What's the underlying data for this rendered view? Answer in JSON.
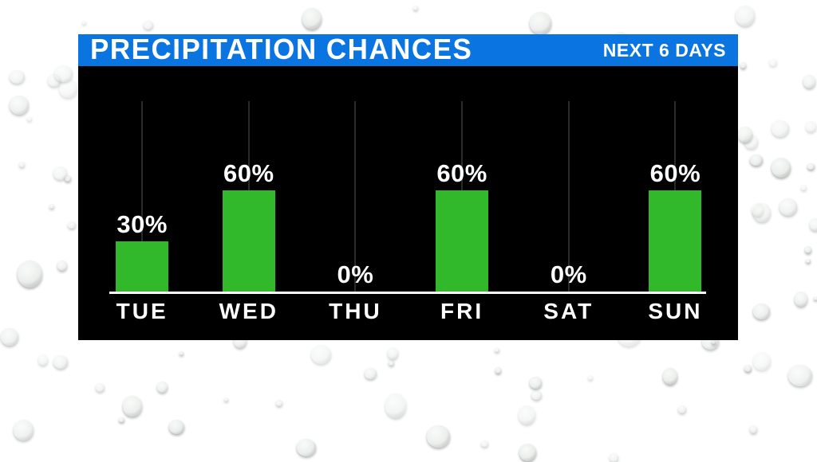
{
  "header": {
    "title": "PRECIPITATION CHANCES",
    "subtitle": "NEXT 6 DAYS"
  },
  "chart_data": {
    "type": "bar",
    "title": "PRECIPITATION CHANCES",
    "subtitle": "NEXT 6 DAYS",
    "categories": [
      "TUE",
      "WED",
      "THU",
      "FRI",
      "SAT",
      "SUN"
    ],
    "values": [
      30,
      60,
      0,
      60,
      0,
      60
    ],
    "value_labels": [
      "30%",
      "60%",
      "0%",
      "60%",
      "0%",
      "60%"
    ],
    "unit": "%",
    "ylim": [
      0,
      100
    ],
    "xlabel": "",
    "ylabel": "",
    "legend": "none",
    "gridlines": "vertical line per category",
    "bar_color": "#31b92b",
    "label_color": "#ffffff"
  },
  "colors": {
    "header_bg": "#0a74e1",
    "panel_bg": "#000000",
    "baseline": "#ffffff",
    "gridline": "#2b2b2b",
    "bar_green": "#31b92b",
    "text": "#ffffff"
  },
  "background": {
    "description": "rain droplets on green-gray glass"
  }
}
